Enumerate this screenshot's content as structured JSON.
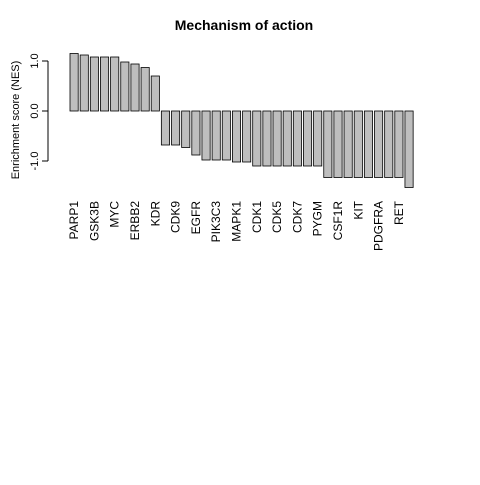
{
  "chart_data": {
    "type": "bar",
    "title": "Mechanism of action",
    "xlabel": "",
    "ylabel": "Enrichment score  (NES)",
    "ylim": [
      -1.5,
      1.2
    ],
    "yticks": [
      1.0,
      0.0,
      -1.0
    ],
    "ytick_labels": [
      "1.0",
      "0.0",
      "-1.0"
    ],
    "bar_fill": "#bebebe",
    "bar_stroke": "#000000",
    "categories": [
      "PARP1",
      "",
      "GSK3B",
      "",
      "MYC",
      "",
      "ERBB2",
      "",
      "KDR",
      "",
      "CDK9",
      "",
      "EGFR",
      "",
      "PIK3C3",
      "",
      "MAPK1",
      "",
      "CDK1",
      "",
      "CDK5",
      "",
      "CDK7",
      "",
      "PYGM",
      "",
      "CSF1R",
      "",
      "KIT",
      "",
      "PDGFRA",
      "",
      "RET",
      ""
    ],
    "values": [
      1.15,
      1.12,
      1.08,
      1.08,
      1.08,
      0.98,
      0.94,
      0.87,
      0.7,
      -0.68,
      -0.68,
      -0.73,
      -0.88,
      -0.98,
      -0.98,
      -0.98,
      -1.02,
      -1.02,
      -1.1,
      -1.1,
      -1.1,
      -1.1,
      -1.1,
      -1.1,
      -1.1,
      -1.33,
      -1.33,
      -1.33,
      -1.33,
      -1.33,
      -1.33,
      -1.33,
      -1.33,
      -1.53
    ]
  }
}
